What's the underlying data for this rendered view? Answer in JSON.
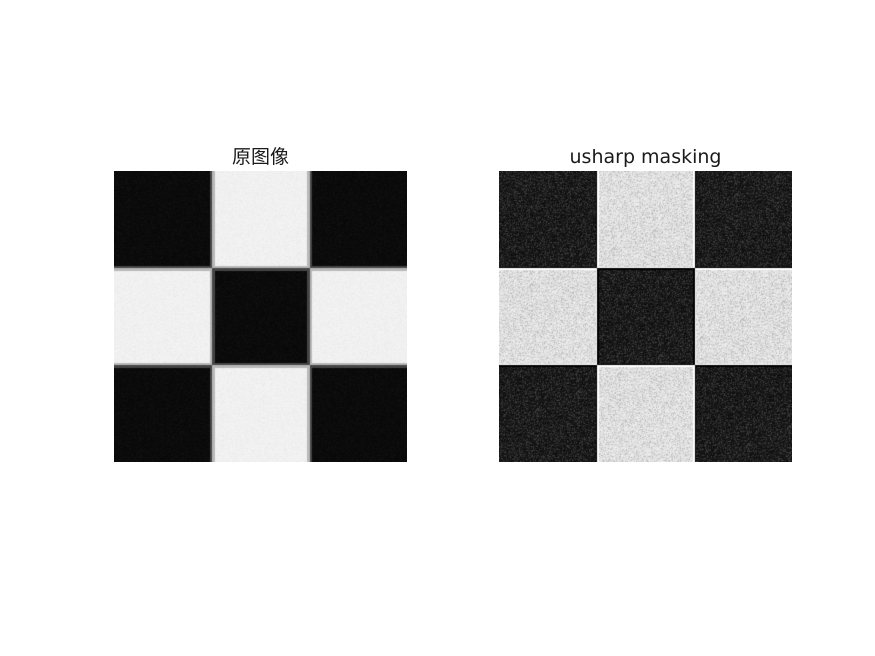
{
  "figure": {
    "background": "#ffffff",
    "panels": [
      {
        "id": "left",
        "title": "原图像",
        "grid": [
          [
            0,
            1,
            0
          ],
          [
            1,
            0,
            1
          ],
          [
            0,
            1,
            0
          ]
        ],
        "dark_level": 8,
        "light_level": 244,
        "noise": 10,
        "edge_blur": true
      },
      {
        "id": "right",
        "title": "usharp masking",
        "grid": [
          [
            0,
            1,
            0
          ],
          [
            1,
            0,
            1
          ],
          [
            0,
            1,
            0
          ]
        ],
        "dark_level": 12,
        "light_level": 240,
        "noise": 55,
        "edge_blur": false
      }
    ]
  }
}
